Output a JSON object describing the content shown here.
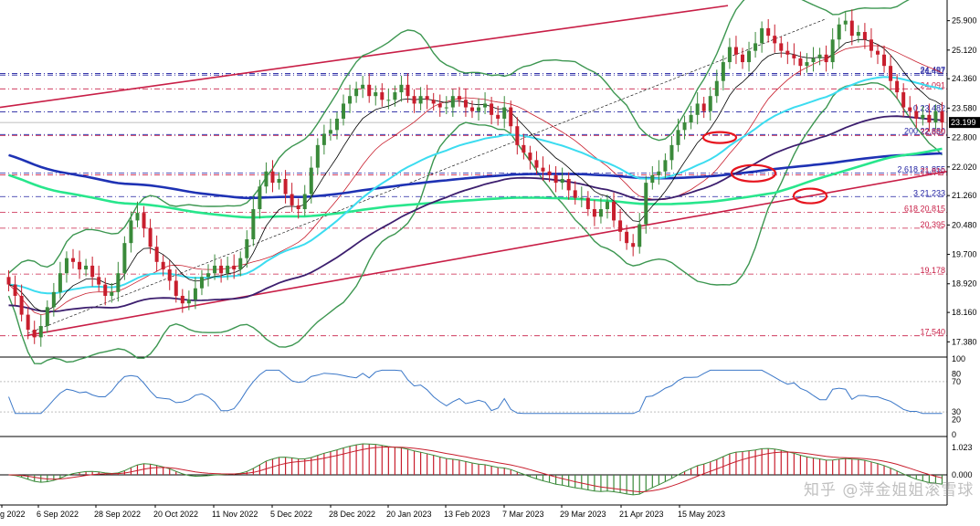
{
  "window": {
    "watermark": "知乎 @萍金姐姐滚雪球"
  },
  "colors": {
    "bull": "#3a8a3a",
    "bear": "#c81e2d",
    "channel": "#c81e46",
    "ma200_blue": "#1e32b4",
    "ma_navy": "#3c1e6e",
    "ma_cyan": "#3cdcf0",
    "ma_green": "#28e68c",
    "bollinger": "#3c9650",
    "fast_ma": "#000000",
    "rsi": "#3c78c8",
    "circle": "#e6141e"
  },
  "chart_data": [
    {
      "type": "candlestick",
      "panel": "price",
      "ylim": [
        17.0,
        26.4
      ],
      "y_ticks": [
        "25.900",
        "25.120",
        "24.360",
        "23.580",
        "22.800",
        "22.020",
        "21.260",
        "20.480",
        "19.700",
        "18.920",
        "18.160",
        "17.380"
      ],
      "current_price": "23.199",
      "fib_levels": [
        {
          "label": "24.497",
          "value": 24.497,
          "color": "#1e1ea0",
          "style": "dashdot"
        },
        {
          "label": "24.457",
          "value": 24.457,
          "color": "#1e1ea0",
          "style": "dashdot"
        },
        {
          "label": "24.091",
          "value": 24.091,
          "color": "#c81e46",
          "style": "dashdot"
        },
        {
          "label": "0  23.482",
          "value": 23.482,
          "color": "#1e1ea0",
          "style": "dashdot"
        },
        {
          "label": "200  22.880",
          "value": 22.88,
          "color": "#1e1ea0",
          "style": "dashdot"
        },
        {
          "label": "22.850",
          "value": 22.85,
          "color": "#c81e46",
          "style": "dashdot"
        },
        {
          "label": "2.618  21.855",
          "value": 21.855,
          "color": "#1e1ea0",
          "style": "dashdot"
        },
        {
          "label": "21.810",
          "value": 21.81,
          "color": "#c81e46",
          "style": "dashdot"
        },
        {
          "label": "3  21.233",
          "value": 21.233,
          "color": "#1e1ea0",
          "style": "dashdot"
        },
        {
          "label": "618  20.815",
          "value": 20.815,
          "color": "#c81e46",
          "style": "dashdot"
        },
        {
          "label": "20.395",
          "value": 20.395,
          "color": "#c81e46",
          "style": "dashdot"
        },
        {
          "label": "19.178",
          "value": 19.178,
          "color": "#c81e46",
          "style": "dashdot"
        },
        {
          "label": "17.540",
          "value": 17.54,
          "color": "#c81e46",
          "style": "dashdot"
        }
      ],
      "x_labels": [
        "g 2022",
        "6 Sep 2022",
        "28 Sep 2022",
        "20 Oct 2022",
        "11 Nov 2022",
        "5 Dec 2022",
        "28 Dec 2022",
        "20 Jan 2023",
        "13 Feb 2023",
        "7 Mar 2023",
        "29 Mar 2023",
        "21 Apr 2023",
        "15 May 2023"
      ],
      "closes": [
        18.9,
        18.6,
        18.1,
        17.7,
        17.5,
        17.8,
        18.3,
        18.7,
        19.2,
        19.6,
        19.5,
        19.3,
        19.4,
        19.1,
        18.9,
        18.6,
        18.7,
        19.2,
        20.0,
        20.6,
        20.8,
        20.4,
        19.9,
        19.5,
        19.3,
        19.0,
        18.6,
        18.4,
        18.5,
        18.8,
        19.1,
        19.2,
        19.4,
        19.2,
        19.4,
        19.3,
        19.6,
        20.1,
        20.9,
        21.5,
        21.9,
        21.6,
        21.7,
        21.3,
        21.0,
        20.9,
        21.3,
        22.0,
        22.6,
        22.9,
        23.0,
        23.3,
        23.7,
        23.9,
        24.1,
        24.2,
        23.9,
        24.0,
        23.8,
        23.8,
        24.0,
        24.2,
        23.9,
        23.7,
        23.9,
        23.8,
        23.7,
        23.6,
        23.6,
        23.9,
        23.8,
        23.6,
        23.5,
        23.6,
        23.7,
        23.4,
        23.3,
        23.6,
        23.1,
        22.6,
        22.4,
        22.2,
        22.0,
        21.9,
        21.8,
        21.6,
        21.7,
        21.4,
        21.2,
        21.2,
        20.9,
        20.7,
        20.9,
        21.1,
        20.6,
        20.3,
        20.0,
        19.9,
        20.5,
        21.6,
        21.8,
        21.9,
        22.2,
        22.6,
        23.0,
        23.2,
        23.4,
        23.7,
        23.5,
        23.9,
        24.3,
        24.8,
        25.2,
        25.0,
        24.8,
        25.1,
        25.3,
        25.7,
        25.5,
        25.3,
        25.1,
        25.0,
        24.9,
        24.7,
        24.8,
        24.9,
        25.0,
        24.8,
        25.4,
        25.8,
        25.9,
        25.5,
        25.6,
        25.4,
        25.1,
        25.0,
        24.7,
        24.3,
        24.0,
        23.6,
        23.5,
        23.3,
        23.4,
        23.2,
        23.5,
        23.2
      ],
      "indicators": [
        "Bollinger Bands",
        "MA 200 (blue)",
        "MA (navy)",
        "MA (cyan)",
        "MA (green)",
        "Fast MA (black)",
        "Ascending channel"
      ]
    },
    {
      "type": "line",
      "panel": "rsi",
      "ylim": [
        0,
        100
      ],
      "y_ticks": [
        "100",
        "80",
        "70",
        "30",
        "20",
        "0"
      ],
      "values_from": "closes"
    },
    {
      "type": "bar",
      "panel": "macd",
      "y_ticks": [
        "1.023",
        "0.000"
      ],
      "values_from": "closes"
    }
  ]
}
